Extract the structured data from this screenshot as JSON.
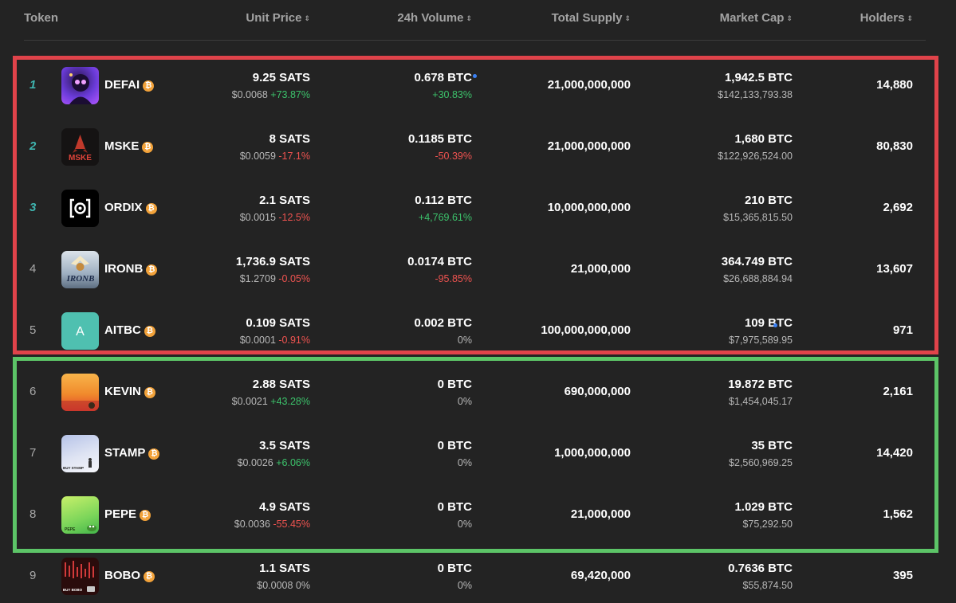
{
  "header": {
    "token": "Token",
    "unit_price": "Unit Price",
    "volume_24h": "24h Volume",
    "total_supply": "Total Supply",
    "market_cap": "Market Cap",
    "holders": "Holders",
    "sort_glyph": "⇕"
  },
  "badge_glyph": "₿",
  "rows": [
    {
      "rank": "1",
      "name": "DEFAI",
      "price": "9.25 SATS",
      "price_usd": "$0.0068",
      "price_change": "+73.87%",
      "volume": "0.678 BTC",
      "volume_change": "+30.83%",
      "supply": "21,000,000,000",
      "mcap": "1,942.5 BTC",
      "mcap_usd": "$142,133,793.38",
      "holders": "14,880",
      "icon": "defai-logo"
    },
    {
      "rank": "2",
      "name": "MSKE",
      "price": "8 SATS",
      "price_usd": "$0.0059",
      "price_change": "-17.1%",
      "volume": "0.1185 BTC",
      "volume_change": "-50.39%",
      "supply": "21,000,000,000",
      "mcap": "1,680 BTC",
      "mcap_usd": "$122,926,524.00",
      "holders": "80,830",
      "icon": "mske-logo",
      "logo_text": "MSKE"
    },
    {
      "rank": "3",
      "name": "ORDIX",
      "price": "2.1 SATS",
      "price_usd": "$0.0015",
      "price_change": "-12.5%",
      "volume": "0.112 BTC",
      "volume_change": "+4,769.61%",
      "supply": "10,000,000,000",
      "mcap": "210 BTC",
      "mcap_usd": "$15,365,815.50",
      "holders": "2,692",
      "icon": "ordix-logo"
    },
    {
      "rank": "4",
      "name": "IRONB",
      "price": "1,736.9 SATS",
      "price_usd": "$1.2709",
      "price_change": "-0.05%",
      "volume": "0.0174 BTC",
      "volume_change": "-95.85%",
      "supply": "21,000,000",
      "mcap": "364.749 BTC",
      "mcap_usd": "$26,688,884.94",
      "holders": "13,607",
      "icon": "ironb-logo",
      "logo_text": "IRONB"
    },
    {
      "rank": "5",
      "name": "AITBC",
      "price": "0.109 SATS",
      "price_usd": "$0.0001",
      "price_change": "-0.91%",
      "volume": "0.002 BTC",
      "volume_change": "0%",
      "supply": "100,000,000,000",
      "mcap": "109 BTC",
      "mcap_usd": "$7,975,589.95",
      "holders": "971",
      "icon": "aitbc-logo",
      "logo_text": "A"
    },
    {
      "rank": "6",
      "name": "KEVIN",
      "price": "2.88 SATS",
      "price_usd": "$0.0021",
      "price_change": "+43.28%",
      "volume": "0 BTC",
      "volume_change": "0%",
      "supply": "690,000,000",
      "mcap": "19.872 BTC",
      "mcap_usd": "$1,454,045.17",
      "holders": "2,161",
      "icon": "kevin-logo"
    },
    {
      "rank": "7",
      "name": "STAMP",
      "price": "3.5 SATS",
      "price_usd": "$0.0026",
      "price_change": "+6.06%",
      "volume": "0 BTC",
      "volume_change": "0%",
      "supply": "1,000,000,000",
      "mcap": "35 BTC",
      "mcap_usd": "$2,560,969.25",
      "holders": "14,420",
      "icon": "stamp-logo",
      "logo_text": "BUY STAMP"
    },
    {
      "rank": "8",
      "name": "PEPE",
      "price": "4.9 SATS",
      "price_usd": "$0.0036",
      "price_change": "-55.45%",
      "volume": "0 BTC",
      "volume_change": "0%",
      "supply": "21,000,000",
      "mcap": "1.029 BTC",
      "mcap_usd": "$75,292.50",
      "holders": "1,562",
      "icon": "pepe-logo",
      "logo_text": "PEPE"
    },
    {
      "rank": "9",
      "name": "BOBO",
      "price": "1.1 SATS",
      "price_usd": "$0.0008",
      "price_change": "0%",
      "volume": "0 BTC",
      "volume_change": "0%",
      "supply": "69,420,000",
      "mcap": "0.7636 BTC",
      "mcap_usd": "$55,874.50",
      "holders": "395",
      "icon": "bobo-logo",
      "logo_text": "BUY BOBO"
    }
  ],
  "colors": {
    "background": "#232323",
    "positive": "#3cc26b",
    "negative": "#ef5350",
    "rank_highlight": "#3fb5b0",
    "highlight_box_red": "#e0434a",
    "highlight_box_green": "#5cc467",
    "btc_badge": "#f2a23a"
  }
}
